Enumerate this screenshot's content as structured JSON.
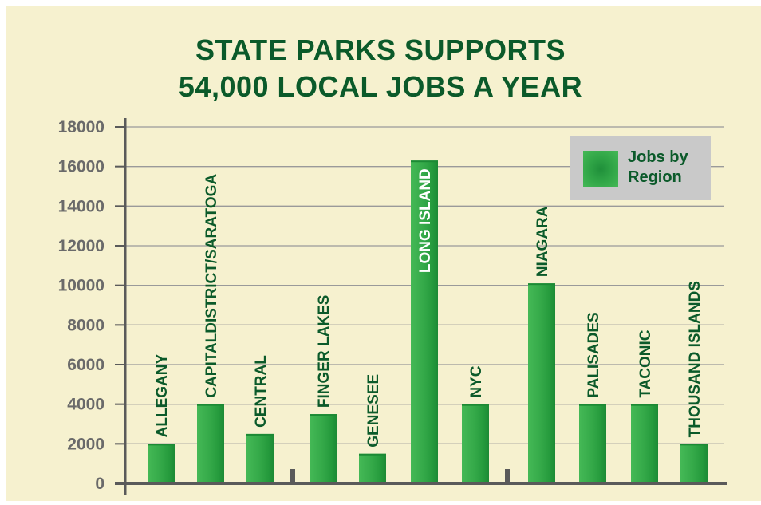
{
  "title": {
    "line1": "STATE PARKS SUPPORTS",
    "line2": "54,000 LOCAL JOBS A YEAR"
  },
  "legend": {
    "line1": "Jobs by",
    "line2": "Region"
  },
  "colors": {
    "background": "#f6f1cf",
    "title": "#0b5a2a",
    "bar_light": "#45b956",
    "bar_dark": "#1f8f3a",
    "grid": "#9a9a9a",
    "axis": "#5a5a5a",
    "tick_text": "#6a6a6a",
    "legend_bg": "#c9c9c9"
  },
  "chart_data": {
    "type": "bar",
    "title": "STATE PARKS SUPPORTS 54,000 LOCAL JOBS A YEAR",
    "xlabel": "",
    "ylabel": "",
    "ylim": [
      0,
      18000
    ],
    "yticks": [
      0,
      2000,
      4000,
      6000,
      8000,
      10000,
      12000,
      14000,
      16000,
      18000
    ],
    "grid": true,
    "legend_position": "top-right",
    "categories": [
      "ALLEGANY",
      "CAPITALDISTRICT/SARATOGA",
      "CENTRAL",
      "FINGER LAKES",
      "GENESEE",
      "LONG ISLAND",
      "NYC",
      "NIAGARA",
      "PALISADES",
      "TACONIC",
      "THOUSAND ISLANDS"
    ],
    "series": [
      {
        "name": "Jobs by Region",
        "values": [
          2000,
          4000,
          2500,
          3500,
          1500,
          16300,
          4000,
          10100,
          4000,
          4000,
          2000
        ]
      }
    ],
    "label_inside_bar": [
      false,
      false,
      false,
      false,
      false,
      true,
      false,
      false,
      false,
      false,
      false
    ]
  }
}
